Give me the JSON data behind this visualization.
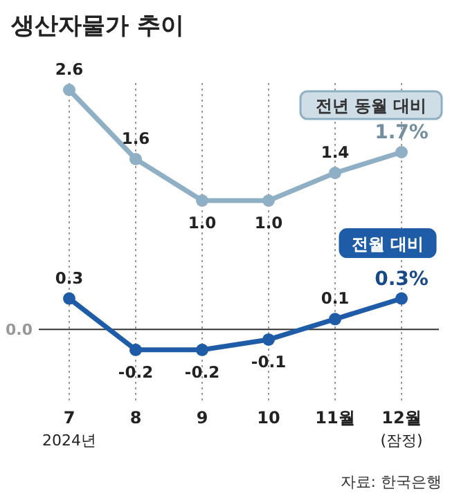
{
  "chart_data": {
    "type": "line",
    "title": "생산자물가 추이",
    "categories": [
      "7\n2024년",
      "8",
      "9",
      "10",
      "11월",
      "12월\n(잠정)"
    ],
    "series": [
      {
        "name": "전년 동월 대비",
        "color": "#8fb0c4",
        "values": [
          2.6,
          1.6,
          1.0,
          1.0,
          1.4,
          1.7
        ],
        "value_labels": [
          "2.6",
          "1.6",
          "1.0",
          "1.0",
          "1.4",
          "1.7%"
        ]
      },
      {
        "name": "전월 대비",
        "color": "#1f5ca8",
        "axis": "y2",
        "values": [
          0.3,
          -0.2,
          -0.2,
          -0.1,
          0.1,
          0.3
        ],
        "value_labels": [
          "0.3",
          "-0.2",
          "-0.2",
          "-0.1",
          "0.1",
          "0.3%"
        ]
      }
    ],
    "ylim": [
      -1.9,
      2.7
    ],
    "y2lim": [
      -0.7,
      2.4
    ],
    "tick_labels": "x",
    "grid": "x",
    "marker": "circle",
    "line_style": "solid",
    "ref_lines": [
      {
        "axis": "y2",
        "value": 0,
        "label": "0.0",
        "color": "#333333"
      }
    ],
    "annotations": [
      "자료: 한국은행"
    ]
  }
}
